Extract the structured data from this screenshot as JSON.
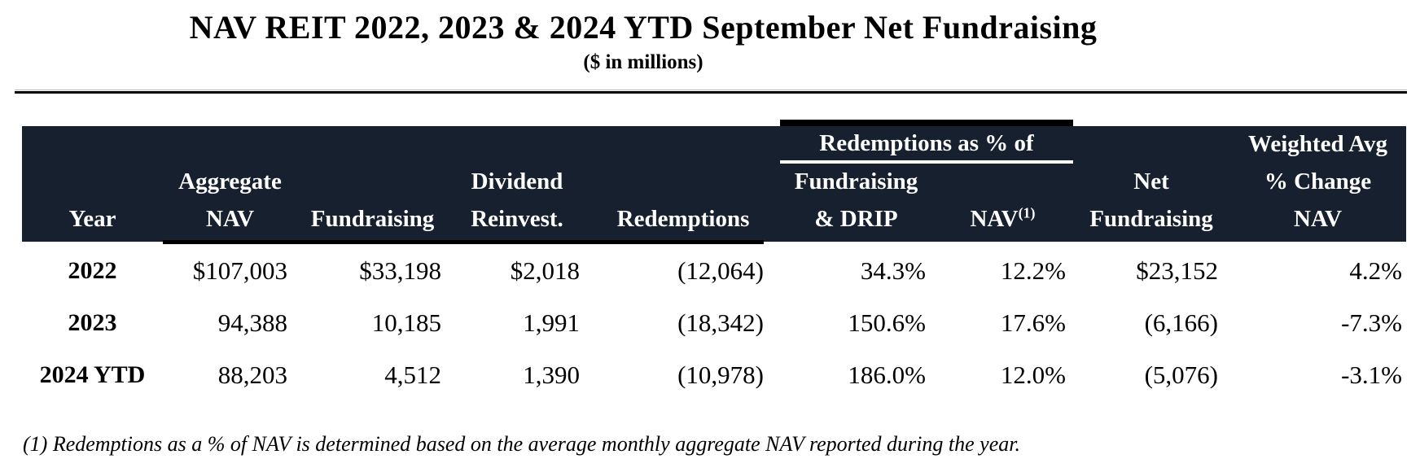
{
  "title": "NAV REIT 2022, 2023 & 2024 YTD September Net Fundraising",
  "subtitle": "($ in millions)",
  "colors": {
    "header_background": "#16202E",
    "header_text": "#FFFFFF",
    "group_header_underline": "#FDFDFD",
    "border_black": "#000000",
    "body_text": "#000000",
    "page_background": "#FFFFFF"
  },
  "table": {
    "group_header": "Redemptions as % of",
    "columns": [
      {
        "lines": [
          "Year"
        ]
      },
      {
        "lines": [
          "Aggregate",
          "NAV"
        ]
      },
      {
        "lines": [
          "Fundraising"
        ]
      },
      {
        "lines": [
          "Dividend",
          "Reinvest."
        ]
      },
      {
        "lines": [
          "Redemptions"
        ]
      },
      {
        "lines": [
          "Fundraising",
          "& DRIP"
        ]
      },
      {
        "lines": [
          "NAV"
        ],
        "superscript": "(1)"
      },
      {
        "lines": [
          "Net",
          "Fundraising"
        ]
      },
      {
        "lines": [
          "Weighted Avg",
          "% Change",
          "NAV"
        ]
      }
    ],
    "rows": [
      {
        "year": "2022",
        "values": [
          "$107,003",
          "$33,198",
          "$2,018",
          "(12,064)",
          "34.3%",
          "12.2%",
          "$23,152",
          "4.2%"
        ]
      },
      {
        "year": "2023",
        "values": [
          "94,388",
          "10,185",
          "1,991",
          "(18,342)",
          "150.6%",
          "17.6%",
          "(6,166)",
          "-7.3%"
        ]
      },
      {
        "year": "2024 YTD",
        "values": [
          "88,203",
          "4,512",
          "1,390",
          "(10,978)",
          "186.0%",
          "12.0%",
          "(5,076)",
          "-3.1%"
        ]
      }
    ]
  },
  "footnote": "(1) Redemptions as a % of NAV is determined based on the average monthly aggregate NAV reported during the year."
}
